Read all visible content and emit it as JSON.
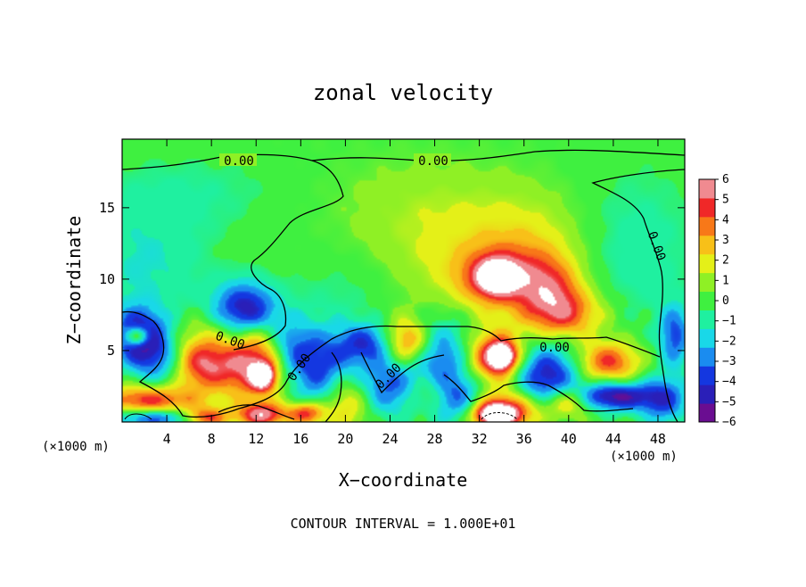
{
  "chart_data": {
    "type": "heatmap",
    "title": "zonal velocity",
    "xlabel": "X−coordinate",
    "ylabel": "Z−coordinate",
    "x_unit": "(×1000 m)",
    "z_unit": "(×1000 m)",
    "xlim": [
      0,
      50.4
    ],
    "ylim": [
      0,
      19.8
    ],
    "x_ticks": [
      "4",
      "8",
      "12",
      "16",
      "20",
      "24",
      "28",
      "32",
      "36",
      "40",
      "44",
      "48"
    ],
    "x_tick_values": [
      4,
      8,
      12,
      16,
      20,
      24,
      28,
      32,
      36,
      40,
      44,
      48
    ],
    "y_ticks": [
      "5",
      "10",
      "15"
    ],
    "y_tick_values": [
      5,
      10,
      15
    ],
    "colorbar": {
      "ticks": [
        "6",
        "5",
        "4",
        "3",
        "2",
        "1",
        "0",
        "−1",
        "−2",
        "−3",
        "−4",
        "−5",
        "−6"
      ],
      "min": -6,
      "max": 6,
      "colors": [
        "#6a0d91",
        "#2a1fb8",
        "#1437e0",
        "#1a8cf0",
        "#19d8e8",
        "#1ff0a0",
        "#3ff040",
        "#8ff025",
        "#e4f018",
        "#f8c018",
        "#f87818",
        "#f02828",
        "#f08a90"
      ]
    },
    "contour_labels": [
      "0.00",
      "0.00",
      "0.00",
      "0.00",
      "0.00",
      "0.00",
      "0.00"
    ],
    "contour_note": "CONTOUR INTERVAL = 1.000E+01",
    "blobs": [
      {
        "x": 1.5,
        "z": 6.0,
        "v": -5.5,
        "sx": 1.6,
        "sz": 1.3
      },
      {
        "x": 1.4,
        "z": 6.0,
        "v": 6.0,
        "sx": 0.8,
        "sz": 0.5
      },
      {
        "x": 7.0,
        "z": 4.1,
        "v": 5.0,
        "sx": 2.0,
        "sz": 1.3
      },
      {
        "x": 12.0,
        "z": 3.8,
        "v": 5.5,
        "sx": 2.2,
        "sz": 1.5
      },
      {
        "x": 12.6,
        "z": 3.2,
        "v": 6.0,
        "sx": 0.7,
        "sz": 0.6
      },
      {
        "x": 11.0,
        "z": 7.8,
        "v": -5.0,
        "sx": 2.0,
        "sz": 1.4
      },
      {
        "x": 3.5,
        "z": 4.2,
        "v": -3.0,
        "sx": 1.8,
        "sz": 1.5
      },
      {
        "x": 2.5,
        "z": 1.5,
        "v": 5.0,
        "sx": 3.0,
        "sz": 0.8
      },
      {
        "x": 3.0,
        "z": 0.3,
        "v": -4.5,
        "sx": 3.0,
        "sz": 0.5
      },
      {
        "x": 7.5,
        "z": 0.3,
        "v": 5.0,
        "sx": 1.5,
        "sz": 0.5
      },
      {
        "x": 12.5,
        "z": 0.5,
        "v": 5.5,
        "sx": 1.5,
        "sz": 0.6
      },
      {
        "x": 16.5,
        "z": 0.6,
        "v": 5.0,
        "sx": 1.2,
        "sz": 0.6
      },
      {
        "x": 18.0,
        "z": 3.6,
        "v": -4.0,
        "sx": 2.2,
        "sz": 2.0
      },
      {
        "x": 15.0,
        "z": 5.0,
        "v": -3.0,
        "sx": 1.5,
        "sz": 1.5
      },
      {
        "x": 22.0,
        "z": 5.5,
        "v": -3.5,
        "sx": 1.8,
        "sz": 1.0
      },
      {
        "x": 20.0,
        "z": 1.5,
        "v": 3.5,
        "sx": 1.5,
        "sz": 1.5
      },
      {
        "x": 24.0,
        "z": 2.6,
        "v": -3.5,
        "sx": 2.0,
        "sz": 1.5
      },
      {
        "x": 25.5,
        "z": 5.5,
        "v": 4.5,
        "sx": 1.5,
        "sz": 1.2
      },
      {
        "x": 28.5,
        "z": 4.5,
        "v": -3.5,
        "sx": 2.0,
        "sz": 2.0
      },
      {
        "x": 30.0,
        "z": 1.5,
        "v": -4.0,
        "sx": 2.0,
        "sz": 1.2
      },
      {
        "x": 27.5,
        "z": 2.0,
        "v": 3.0,
        "sx": 1.5,
        "sz": 1.0
      },
      {
        "x": 33.5,
        "z": 4.5,
        "v": 5.5,
        "sx": 1.8,
        "sz": 1.3
      },
      {
        "x": 34.0,
        "z": 4.6,
        "v": 6.0,
        "sx": 0.8,
        "sz": 0.6
      },
      {
        "x": 34.0,
        "z": 0.8,
        "v": 5.5,
        "sx": 2.5,
        "sz": 1.0
      },
      {
        "x": 33.5,
        "z": 0.5,
        "v": 6.0,
        "sx": 1.2,
        "sz": 0.5
      },
      {
        "x": 38.0,
        "z": 3.2,
        "v": -5.0,
        "sx": 2.2,
        "sz": 1.6
      },
      {
        "x": 40.0,
        "z": 1.5,
        "v": 4.0,
        "sx": 1.5,
        "sz": 0.8
      },
      {
        "x": 43.5,
        "z": 4.2,
        "v": 4.5,
        "sx": 2.0,
        "sz": 1.0
      },
      {
        "x": 44.0,
        "z": 1.8,
        "v": -5.5,
        "sx": 2.5,
        "sz": 0.7
      },
      {
        "x": 48.5,
        "z": 1.5,
        "v": -3.5,
        "sx": 1.5,
        "sz": 1.2
      },
      {
        "x": 49.5,
        "z": 6.0,
        "v": -3.5,
        "sx": 1.0,
        "sz": 1.5
      },
      {
        "x": 34.0,
        "z": 10.0,
        "v": 4.0,
        "sx": 2.8,
        "sz": 1.5
      },
      {
        "x": 33.5,
        "z": 10.2,
        "v": 5.0,
        "sx": 1.2,
        "sz": 0.8
      },
      {
        "x": 38.5,
        "z": 9.0,
        "v": 3.5,
        "sx": 2.0,
        "sz": 1.8
      },
      {
        "x": 40.0,
        "z": 7.5,
        "v": 3.0,
        "sx": 2.5,
        "sz": 1.2
      },
      {
        "x": 36.0,
        "z": 12.5,
        "v": 1.8,
        "sx": 4.0,
        "sz": 2.5
      },
      {
        "x": 28.0,
        "z": 11.0,
        "v": 1.0,
        "sx": 4.0,
        "sz": 3.0
      },
      {
        "x": 2.0,
        "z": 11.0,
        "v": -1.5,
        "sx": 4.0,
        "sz": 3.0
      },
      {
        "x": 46.0,
        "z": 12.0,
        "v": -1.2,
        "sx": 4.0,
        "sz": 4.0
      },
      {
        "x": 6.0,
        "z": 16.0,
        "v": -0.8,
        "sx": 6.0,
        "sz": 2.0
      },
      {
        "x": 27.0,
        "z": 15.0,
        "v": 0.8,
        "sx": 6.0,
        "sz": 2.5
      },
      {
        "x": 20.0,
        "z": 9.0,
        "v": -0.7,
        "sx": 4.0,
        "sz": 2.0
      },
      {
        "x": 12.0,
        "z": 6.0,
        "v": 1.5,
        "sx": 1.5,
        "sz": 1.0
      },
      {
        "x": 7.5,
        "z": 6.5,
        "v": 1.0,
        "sx": 2.0,
        "sz": 1.0
      }
    ]
  }
}
